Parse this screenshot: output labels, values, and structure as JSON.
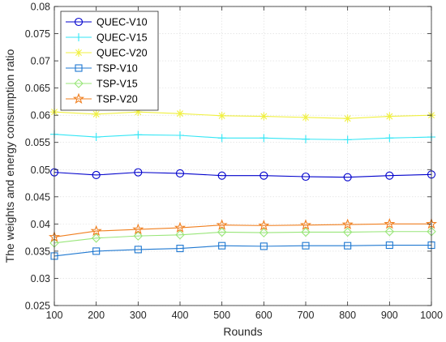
{
  "chart_data": {
    "type": "line",
    "title": "",
    "xlabel": "Rounds",
    "ylabel": "The weights and energy consumption ratio",
    "x": [
      100,
      200,
      300,
      400,
      500,
      600,
      700,
      800,
      900,
      1000
    ],
    "xlim": [
      100,
      1000
    ],
    "ylim": [
      0.025,
      0.08
    ],
    "xticks": [
      "100",
      "200",
      "300",
      "400",
      "500",
      "600",
      "700",
      "800",
      "900",
      "1000"
    ],
    "yticks": [
      "0.025",
      "0.03",
      "0.035",
      "0.04",
      "0.045",
      "0.05",
      "0.055",
      "0.06",
      "0.065",
      "0.07",
      "0.075",
      "0.08"
    ],
    "grid": true,
    "legend_position": "top-left",
    "series": [
      {
        "name": "QUEC-V10",
        "color": "#0000cc",
        "marker": "circle",
        "values": [
          0.0495,
          0.049,
          0.0495,
          0.0493,
          0.0489,
          0.0489,
          0.0487,
          0.0486,
          0.0489,
          0.0491
        ]
      },
      {
        "name": "QUEC-V15",
        "color": "#33e6f5",
        "marker": "plus",
        "values": [
          0.0565,
          0.056,
          0.0564,
          0.0563,
          0.0558,
          0.0558,
          0.0556,
          0.0555,
          0.0558,
          0.056
        ]
      },
      {
        "name": "QUEC-V20",
        "color": "#f0f040",
        "marker": "asterisk",
        "values": [
          0.0606,
          0.0602,
          0.0606,
          0.0603,
          0.0599,
          0.0598,
          0.0596,
          0.0594,
          0.0598,
          0.06
        ]
      },
      {
        "name": "TSP-V10",
        "color": "#1f78d1",
        "marker": "square",
        "values": [
          0.0341,
          0.035,
          0.0353,
          0.0355,
          0.036,
          0.0359,
          0.036,
          0.036,
          0.0361,
          0.0361
        ]
      },
      {
        "name": "TSP-V15",
        "color": "#99e67a",
        "marker": "diamond",
        "values": [
          0.0365,
          0.0374,
          0.0378,
          0.038,
          0.0385,
          0.0384,
          0.0385,
          0.0385,
          0.0386,
          0.0386
        ]
      },
      {
        "name": "TSP-V20",
        "color": "#f07f1f",
        "marker": "star",
        "values": [
          0.0376,
          0.0387,
          0.039,
          0.0393,
          0.0398,
          0.0397,
          0.0398,
          0.0399,
          0.04,
          0.04
        ]
      }
    ]
  }
}
